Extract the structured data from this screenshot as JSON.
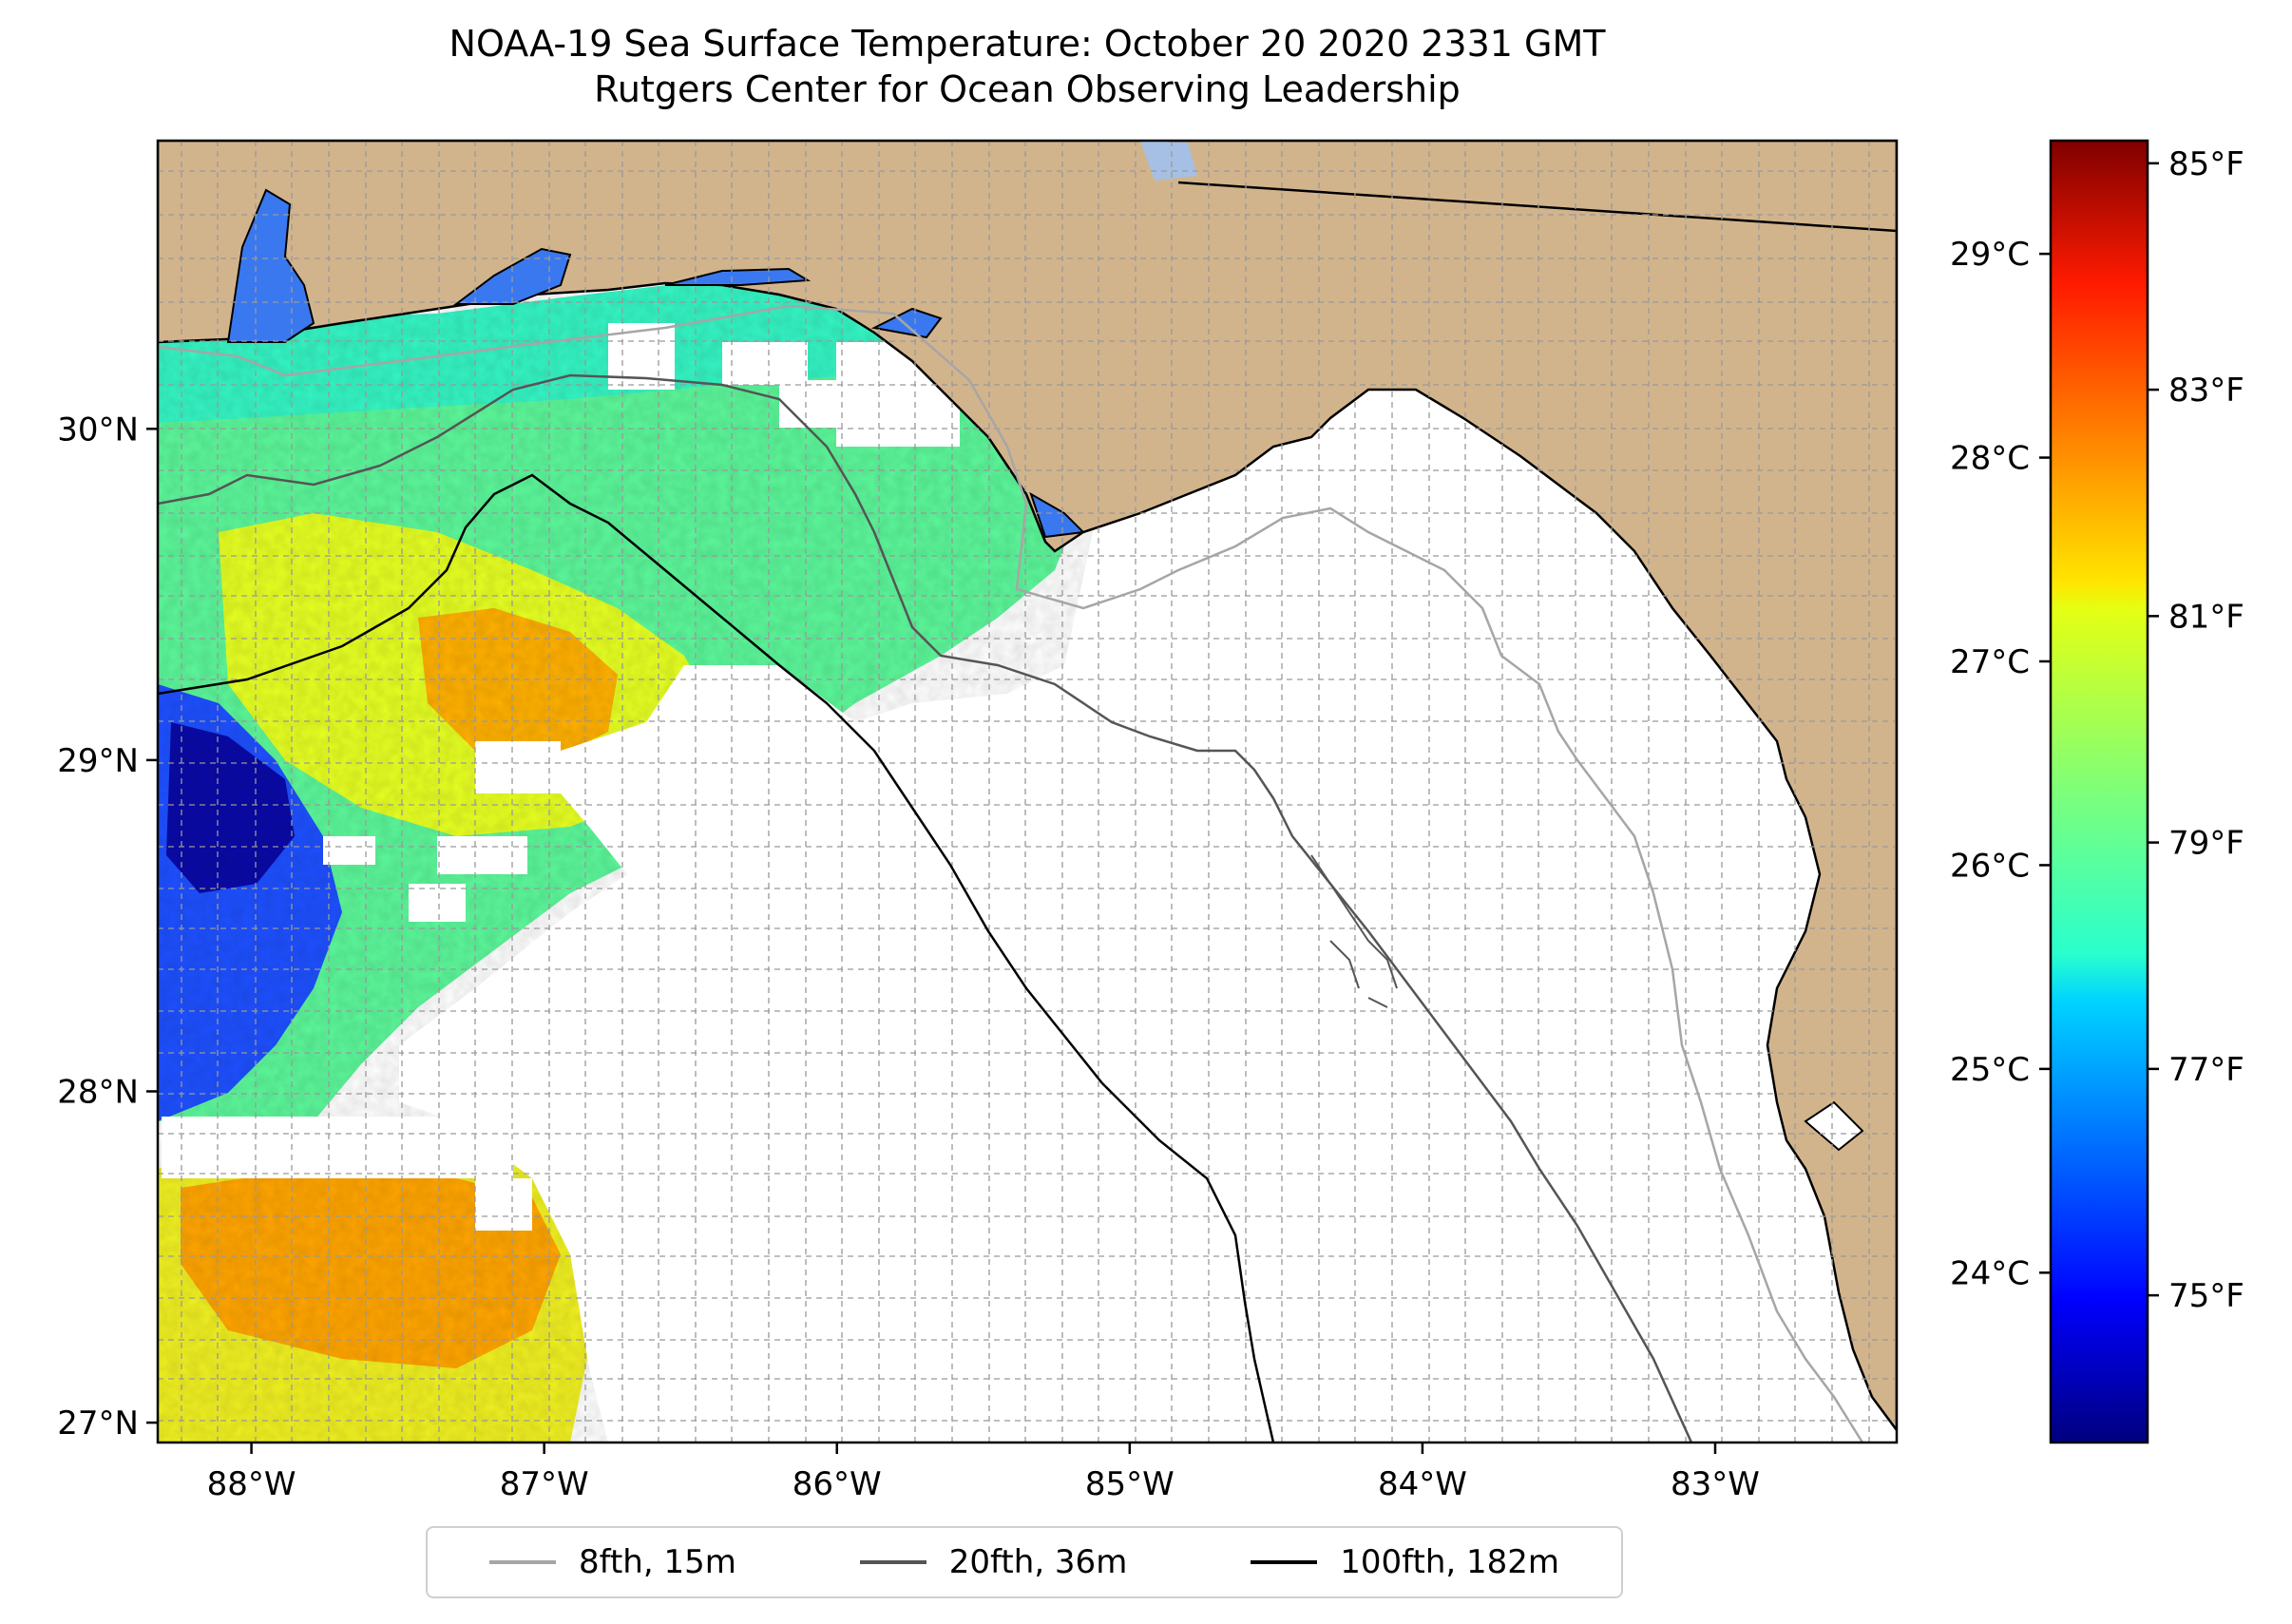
{
  "title_line1": "NOAA-19 Sea Surface Temperature: October 20 2020 2331 GMT",
  "title_line2": "Rutgers Center for Ocean Observing Leadership",
  "chart_data": {
    "type": "heatmap",
    "map_extent": {
      "lon_min": -88.32,
      "lon_max": -82.38,
      "lat_min": 26.94,
      "lat_max": 30.87
    },
    "lon_ticks": [
      {
        "value": -88,
        "label": "88°W"
      },
      {
        "value": -87,
        "label": "87°W"
      },
      {
        "value": -86,
        "label": "86°W"
      },
      {
        "value": -85,
        "label": "85°W"
      },
      {
        "value": -84,
        "label": "84°W"
      },
      {
        "value": -83,
        "label": "83°W"
      }
    ],
    "lat_ticks": [
      {
        "value": 30,
        "label": "30°N"
      },
      {
        "value": 29,
        "label": "29°N"
      },
      {
        "value": 28,
        "label": "28°N"
      },
      {
        "value": 27,
        "label": "27°N"
      }
    ],
    "grid": true,
    "colorbar": {
      "colormap": "jet",
      "range_f": [
        73.7,
        85.2
      ],
      "celsius_ticks": [
        {
          "value": 29,
          "label": "29°C"
        },
        {
          "value": 28,
          "label": "28°C"
        },
        {
          "value": 27,
          "label": "27°C"
        },
        {
          "value": 26,
          "label": "26°C"
        },
        {
          "value": 25,
          "label": "25°C"
        },
        {
          "value": 24,
          "label": "24°C"
        }
      ],
      "fahrenheit_ticks": [
        {
          "value": 85,
          "label": "85°F"
        },
        {
          "value": 83,
          "label": "83°F"
        },
        {
          "value": 81,
          "label": "81°F"
        },
        {
          "value": 79,
          "label": "79°F"
        },
        {
          "value": 77,
          "label": "77°F"
        },
        {
          "value": 75,
          "label": "75°F"
        }
      ]
    },
    "legend": {
      "placement": "bottom-center",
      "entries": [
        {
          "label": "8fth, 15m",
          "color": "#a6a6a6"
        },
        {
          "label": "20fth, 36m",
          "color": "#555555"
        },
        {
          "label": "100fth, 182m",
          "color": "#000000"
        }
      ]
    },
    "colors": {
      "land": "#d2b48c",
      "no_data": "#ffffff",
      "lake": "#a5c0e4"
    }
  }
}
